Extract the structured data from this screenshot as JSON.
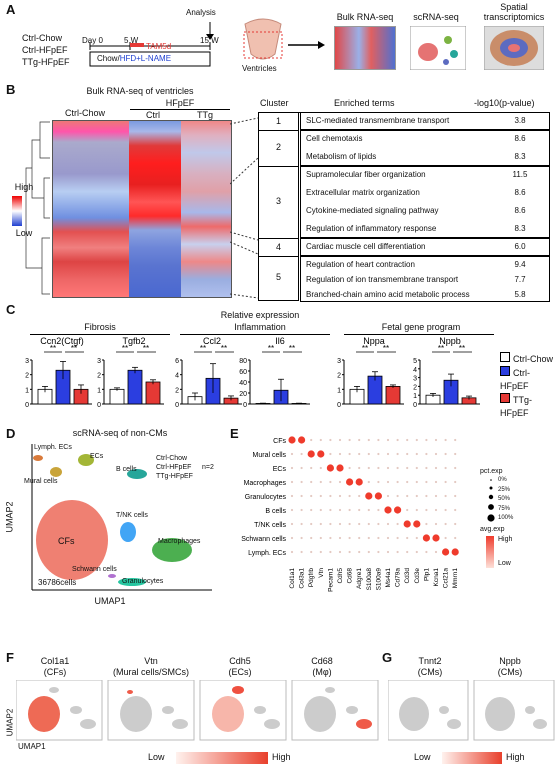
{
  "panels": {
    "a": "A",
    "b": "B",
    "c": "C",
    "d": "D",
    "e": "E",
    "f": "F",
    "g": "G"
  },
  "panel_a": {
    "groups": [
      "Ctrl-Chow",
      "Ctrl-HFpEF",
      "TTg-HFpEF"
    ],
    "day0": "Day 0",
    "w5": "5 W",
    "w15": "15 W",
    "analysis": "Analysis",
    "tam": "TAM5d",
    "diet_chow": "Chow/",
    "diet_hfd": "HFD+L-NAME",
    "ventricles": "Ventricles",
    "bulk": "Bulk RNA-seq",
    "scrna": "scRNA-seq",
    "spatial": "Spatial transcriptomics"
  },
  "panel_b": {
    "title": "Bulk RNA-seq of ventricles",
    "hfpef": "HFpEF",
    "col_ctrlchow": "Ctrl-Chow",
    "col_ctrl": "Ctrl",
    "col_ttg": "TTg",
    "scale_high": "High",
    "scale_low": "Low",
    "hdr_cluster": "Cluster",
    "hdr_terms": "Enriched terms",
    "hdr_p": "-log10(p-value)",
    "rows": [
      {
        "cluster": "1",
        "term": "SLC-mediated transmembrane transport",
        "p": "3.8"
      },
      {
        "cluster": "2",
        "term": "Cell chemotaxis",
        "p": "8.6"
      },
      {
        "cluster": "",
        "term": "Metabolism of lipids",
        "p": "8.3"
      },
      {
        "cluster": "3",
        "term": "Supramolecular fiber organization",
        "p": "11.5"
      },
      {
        "cluster": "",
        "term": "Extracellular matrix organization",
        "p": "8.6"
      },
      {
        "cluster": "",
        "term": "Cytokine-mediated signaling pathway",
        "p": "8.6"
      },
      {
        "cluster": "",
        "term": "Regulation of inflammatory response",
        "p": "8.3"
      },
      {
        "cluster": "4",
        "term": "Cardiac muscle cell differentiation",
        "p": "6.0"
      },
      {
        "cluster": "5",
        "term": "Regulation of heart contraction",
        "p": "9.4"
      },
      {
        "cluster": "",
        "term": "Regulation of ion transmembrane transport",
        "p": "7.7"
      },
      {
        "cluster": "",
        "term": "Branched-chain amino acid metabolic process",
        "p": "5.8"
      }
    ]
  },
  "panel_c": {
    "title": "Relative expression",
    "cat_fibrosis": "Fibrosis",
    "cat_inflammation": "Inflammation",
    "cat_fetal": "Fetal gene program",
    "legend": [
      "Ctrl-Chow",
      "Ctrl-HFpEF",
      "TTg-HFpEF"
    ],
    "sig": "**"
  },
  "panel_d": {
    "title": "scRNA-seq of non-CMs",
    "legend_groups": [
      "Ctrl-Chow",
      "Ctrl-HFpEF",
      "TTg-HFpEF"
    ],
    "n": "n=2",
    "cells": "36786cells",
    "xlabel": "UMAP1",
    "ylabel": "UMAP2",
    "labels": {
      "lymph": "Lymph. ECs",
      "ecs": "ECs",
      "mural": "Mural cells",
      "bcells": "B cells",
      "tnk": "T/NK cells",
      "cfs": "CFs",
      "macro": "Macrophages",
      "schwann": "Schwann cells",
      "gran": "Granulocytes"
    }
  },
  "panel_e": {
    "legend_pct": "pct.exp",
    "pct_levels": [
      "0%",
      "25%",
      "50%",
      "75%",
      "100%"
    ],
    "legend_avg": "avg.exp",
    "avg_high": "High",
    "avg_low": "Low"
  },
  "panel_f": {
    "maps": [
      {
        "gene": "Col1a1",
        "cell": "(CFs)"
      },
      {
        "gene": "Vtn",
        "cell": "(Mural cells/SMCs)"
      },
      {
        "gene": "Cdh5",
        "cell": "(ECs)"
      },
      {
        "gene": "Cd68",
        "cell": "(Mφ)"
      }
    ],
    "ylabel": "UMAP2",
    "xlabel": "UMAP1",
    "low": "Low",
    "high": "High"
  },
  "panel_g": {
    "maps": [
      {
        "gene": "Tnnt2",
        "cell": "(CMs)"
      },
      {
        "gene": "Nppb",
        "cell": "(CMs)"
      }
    ],
    "low": "Low",
    "high": "High"
  },
  "chart_data": [
    {
      "type": "bar",
      "title": "Ccn2(Ctgf)",
      "categories": [
        "Ctrl-Chow",
        "Ctrl-HFpEF",
        "TTg-HFpEF"
      ],
      "values": [
        1.0,
        2.3,
        1.0
      ],
      "errors": [
        0.2,
        0.6,
        0.3
      ],
      "ylim": [
        0,
        3
      ],
      "yticks": [
        0,
        1,
        2,
        3
      ]
    },
    {
      "type": "bar",
      "title": "Tgfb2",
      "categories": [
        "Ctrl-Chow",
        "Ctrl-HFpEF",
        "TTg-HFpEF"
      ],
      "values": [
        1.0,
        2.3,
        1.5
      ],
      "errors": [
        0.1,
        0.2,
        0.15
      ],
      "ylim": [
        0,
        3
      ],
      "yticks": [
        0,
        1,
        2,
        3
      ]
    },
    {
      "type": "bar",
      "title": "Ccl2",
      "categories": [
        "Ctrl-Chow",
        "Ctrl-HFpEF",
        "TTg-HFpEF"
      ],
      "values": [
        1.0,
        3.5,
        0.8
      ],
      "errors": [
        0.5,
        2.0,
        0.3
      ],
      "ylim": [
        0,
        6
      ],
      "yticks": [
        0,
        2,
        4,
        6
      ]
    },
    {
      "type": "bar",
      "title": "Il6",
      "categories": [
        "Ctrl-Chow",
        "Ctrl-HFpEF",
        "TTg-HFpEF"
      ],
      "values": [
        1.0,
        25,
        1.0
      ],
      "errors": [
        0.5,
        20,
        0.5
      ],
      "ylim": [
        0,
        80
      ],
      "yticks": [
        0,
        20,
        40,
        60,
        80
      ]
    },
    {
      "type": "bar",
      "title": "Nppa",
      "categories": [
        "Ctrl-Chow",
        "Ctrl-HFpEF",
        "TTg-HFpEF"
      ],
      "values": [
        1.0,
        1.9,
        1.2
      ],
      "errors": [
        0.2,
        0.3,
        0.1
      ],
      "ylim": [
        0,
        3
      ],
      "yticks": [
        0,
        1,
        2,
        3
      ]
    },
    {
      "type": "bar",
      "title": "Nppb",
      "categories": [
        "Ctrl-Chow",
        "Ctrl-HFpEF",
        "TTg-HFpEF"
      ],
      "values": [
        1.0,
        2.7,
        0.7
      ],
      "errors": [
        0.2,
        0.7,
        0.2
      ],
      "ylim": [
        0,
        5
      ],
      "yticks": [
        0,
        1,
        2,
        3,
        4,
        5
      ]
    },
    {
      "type": "scatter",
      "title": "dot plot",
      "rows": [
        "CFs",
        "Mural cells",
        "ECs",
        "Macrophages",
        "Granulocytes",
        "B cells",
        "T/NK cells",
        "Schwann cells",
        "Lymph. ECs"
      ],
      "genes": [
        "Col1a1",
        "Col3a1",
        "Pdgfrb",
        "Vtn",
        "Pecam1",
        "Cdh5",
        "Cd68",
        "Adgre1",
        "S100a8",
        "S100a9",
        "Ms4a1",
        "Cd79a",
        "Cd3d",
        "Cd3e",
        "Plp1",
        "Kcna1",
        "Ccl21a",
        "Mmrn1"
      ],
      "high": [
        [
          0,
          0
        ],
        [
          0,
          1
        ],
        [
          1,
          2
        ],
        [
          1,
          3
        ],
        [
          2,
          4
        ],
        [
          2,
          5
        ],
        [
          3,
          6
        ],
        [
          3,
          7
        ],
        [
          4,
          8
        ],
        [
          4,
          9
        ],
        [
          5,
          10
        ],
        [
          5,
          11
        ],
        [
          6,
          12
        ],
        [
          6,
          13
        ],
        [
          7,
          14
        ],
        [
          7,
          15
        ],
        [
          8,
          16
        ],
        [
          8,
          17
        ]
      ]
    }
  ]
}
